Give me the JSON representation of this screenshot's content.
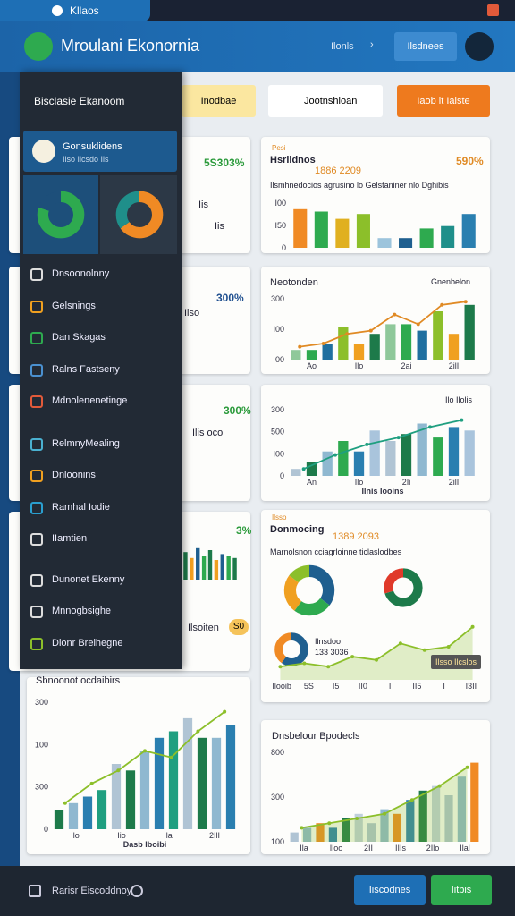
{
  "browser": {
    "tab": "Kllaos"
  },
  "header": {
    "title": "Mroulani Ekonornia",
    "link": "Ilonls",
    "button": "Ilsdnees"
  },
  "toolbar": {
    "buttons": [
      "Inodbae",
      "Jootnshloan",
      "Iaob it Iaiste"
    ]
  },
  "sidebar": {
    "title": "Bisclasie Ekanoom",
    "selected": {
      "title": "Gonsuklidens",
      "subtitle": "Ilso Iicsdo Iis"
    },
    "donuts": [
      {
        "values": [
          80,
          20
        ],
        "colors": [
          "#2eaa4f",
          "#1d4f7a"
        ]
      },
      {
        "values": [
          65,
          35
        ],
        "colors": [
          "#f08a24",
          "#1f8f8a"
        ]
      }
    ],
    "items": [
      "Dnsoonolnny",
      "Gelsnings",
      "Dan Skagas",
      "Ralns Fastseny",
      "Mdnolenenetinge",
      "RelmnyMealing",
      "Dnloonins",
      "Ramhal Iodie",
      "IIamtien",
      "Dunonet Ekenny",
      "Mnnogbsighe",
      "Dlonr Brelhegne"
    ]
  },
  "left_cards": [
    {
      "value": "5S303%",
      "labels": [
        "Iis",
        "Iis"
      ]
    },
    {
      "value": "300%",
      "text": "Ilso"
    },
    {
      "value": "300%",
      "text": "Ilis oco"
    },
    {
      "value": "3%",
      "text": "Ilsoiten",
      "badge": "S0",
      "chart": {
        "values": [
          70,
          55,
          80,
          60,
          75,
          50,
          65,
          60,
          55
        ],
        "colors": [
          "#1d7a4a",
          "#f0a020",
          "#1f5f8f",
          "#2eaa4f"
        ],
        "ylim": [
          0,
          100
        ]
      }
    },
    {
      "title": "Sbnoonot ocdaibirs",
      "chart": {
        "ylabels": [
          "300",
          "100",
          "300",
          "0"
        ],
        "xlabels": [
          "Ilo",
          "Iio",
          "Ila",
          "2IlI"
        ],
        "xtitle": "Dasb Iboibi",
        "values": [
          15,
          20,
          25,
          30,
          50,
          45,
          60,
          70,
          75,
          85,
          70,
          70,
          80
        ],
        "colors": [
          "#1d7a4a",
          "#8fb8d0",
          "#2a7fb0",
          "#1f9f80",
          "#b0c4d4"
        ],
        "line": [
          20,
          35,
          45,
          60,
          55,
          75,
          90
        ],
        "line_color": "#8cbf2a",
        "ylim": [
          0,
          100
        ]
      }
    }
  ],
  "cards": [
    {
      "tag": "Pesi",
      "title": "Hsrlidnos",
      "subtitle": "1886 2209",
      "value": "590%",
      "text": "Ilsmhnedocios agrusino lo Gelstaniner nlo Dghibis",
      "chart": {
        "ylabels": [
          "I00",
          "I50",
          "0"
        ],
        "values": [
          80,
          75,
          60,
          70,
          20,
          20,
          40,
          45,
          70
        ],
        "colors": [
          "#f08a24",
          "#2eaa4f",
          "#e0b020",
          "#8cbf2a",
          "#9cc4dc",
          "#1f5f8f",
          "#2eaa4f",
          "#1f8f8a",
          "#2a7fb0"
        ],
        "ylim": [
          0,
          100
        ]
      }
    },
    {
      "title": "Neotonden",
      "subtitle": "Gnenbelon",
      "chart": {
        "ylabels": [
          "300",
          "I00",
          "00"
        ],
        "xlabels": [
          "Ao",
          "Ilo",
          "2ai",
          "2ilI"
        ],
        "values": [
          15,
          15,
          25,
          50,
          25,
          40,
          55,
          55,
          45,
          75,
          40,
          85
        ],
        "colors": [
          "#8fc89a",
          "#2eaa4f",
          "#1f6f9f",
          "#8cbf2a",
          "#f0a020",
          "#1d7a4a"
        ],
        "line": [
          20,
          25,
          40,
          45,
          70,
          55,
          85,
          90
        ],
        "line_color": "#e08a24",
        "ylim": [
          0,
          100
        ]
      }
    },
    {
      "title": "Ilo Ilolis",
      "chart": {
        "ylabels": [
          "300",
          "500",
          "I00",
          "0"
        ],
        "xlabels": [
          "An",
          "Ilo",
          "2Ii",
          "2ilI"
        ],
        "xtitle": "Ilnis Iooins",
        "values": [
          10,
          20,
          35,
          50,
          35,
          65,
          50,
          60,
          75,
          55,
          70,
          65
        ],
        "colors": [
          "#b0c4d4",
          "#1d7a4a",
          "#8fb8d0",
          "#2eaa4f",
          "#2a7fb0",
          "#a9c4dc"
        ],
        "line": [
          10,
          30,
          45,
          55,
          70,
          80
        ],
        "line_color": "#1f9f80",
        "ylim": [
          0,
          100
        ]
      }
    },
    {
      "tag": "Ilsso",
      "title": "Donmocing",
      "subtitle": "1389 2093",
      "text": "Marnolsnon cciagrloinne ticlaslodbes",
      "legend": "Ilnsdoo",
      "legend_value": "133 3036",
      "badge": "Ilsso Ilcslos",
      "donuts": [
        {
          "values": [
            35,
            25,
            25,
            15
          ],
          "colors": [
            "#1f5f8f",
            "#2eaa4f",
            "#f0a020",
            "#8cbf2a"
          ]
        },
        {
          "values": [
            70,
            30
          ],
          "colors": [
            "#1d7a4a",
            "#e03a2a"
          ]
        },
        {
          "values": [
            60,
            40
          ],
          "colors": [
            "#1f5f8f",
            "#f08a24"
          ]
        }
      ],
      "chart": {
        "xlabels": [
          "Ilooib",
          "5S",
          "I5",
          "II0",
          "I",
          "II5",
          "I",
          "I3II"
        ],
        "line": [
          20,
          25,
          20,
          35,
          30,
          55,
          45,
          50,
          80
        ],
        "line_color": "#8cbf2a",
        "area": true,
        "ylim": [
          0,
          100
        ]
      }
    },
    {
      "title": "Dnsbelour Bpodecls",
      "chart": {
        "ylabels": [
          "800",
          "300",
          "100"
        ],
        "xlabels": [
          "Ila",
          "Iloo",
          "2II",
          "IIIs",
          "2Ilo",
          "Ilal"
        ],
        "values": [
          10,
          15,
          20,
          15,
          25,
          30,
          20,
          35,
          30,
          45,
          55,
          60,
          50,
          70,
          85
        ],
        "colors": [
          "#b0c4d4",
          "#8fb8d0",
          "#f08a24",
          "#2a7fb0",
          "#1d7a4a",
          "#c0d0dc"
        ],
        "line": [
          15,
          20,
          25,
          30,
          45,
          60,
          80
        ],
        "line_color": "#8cbf2a",
        "area": true,
        "ylim": [
          0,
          100
        ]
      }
    }
  ],
  "footer": {
    "label": "Rarisr Eiscoddnoy",
    "buttons": [
      "Iiscodnes",
      "Iitbis"
    ]
  }
}
